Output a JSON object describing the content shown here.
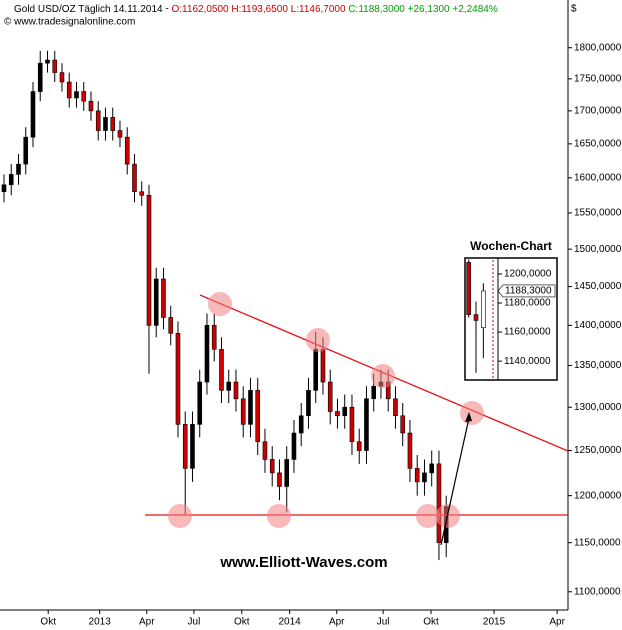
{
  "chart_data": [
    {
      "type": "candlestick",
      "title": "Gold USD/OZ Täglich",
      "date": "14.11.2014",
      "quote_ohl": "O:1162,0500 H:1193,6500 L:1146,7000",
      "quote_change": "C:1188,3000 +26,1300 +2,2484%",
      "source": "© www.tradesignalonline.com",
      "currency": "$",
      "annotation": "www.Elliott-Waves.com",
      "up_color": "#000000",
      "down_color": "#cc0000",
      "log_scale": true,
      "grid": false,
      "open": [
        1580,
        1590,
        1605,
        1620,
        1660,
        1730,
        1775,
        1780,
        1760,
        1745,
        1720,
        1730,
        1715,
        1700,
        1670,
        1690,
        1670,
        1660,
        1620,
        1580,
        1575,
        1400,
        1460,
        1410,
        1390,
        1280,
        1230,
        1280,
        1330,
        1400,
        1370,
        1320,
        1330,
        1310,
        1280,
        1320,
        1260,
        1240,
        1225,
        1210,
        1240,
        1270,
        1290,
        1320,
        1370,
        1330,
        1295,
        1290,
        1300,
        1260,
        1250,
        1310,
        1325,
        1330,
        1310,
        1290,
        1270,
        1230,
        1215,
        1225,
        1235,
        1150
      ],
      "high": [
        1605,
        1620,
        1635,
        1675,
        1745,
        1795,
        1795,
        1795,
        1775,
        1760,
        1745,
        1745,
        1730,
        1715,
        1705,
        1705,
        1685,
        1675,
        1635,
        1595,
        1590,
        1475,
        1475,
        1425,
        1405,
        1295,
        1295,
        1345,
        1415,
        1415,
        1385,
        1345,
        1345,
        1325,
        1335,
        1335,
        1275,
        1255,
        1240,
        1255,
        1285,
        1305,
        1335,
        1392,
        1385,
        1345,
        1310,
        1315,
        1315,
        1275,
        1325,
        1340,
        1345,
        1345,
        1325,
        1305,
        1285,
        1245,
        1240,
        1250,
        1250,
        1200
      ],
      "low": [
        1565,
        1575,
        1590,
        1605,
        1645,
        1715,
        1760,
        1745,
        1730,
        1705,
        1705,
        1700,
        1685,
        1655,
        1655,
        1655,
        1645,
        1605,
        1565,
        1560,
        1340,
        1385,
        1395,
        1375,
        1265,
        1180,
        1215,
        1265,
        1315,
        1355,
        1305,
        1305,
        1295,
        1265,
        1265,
        1245,
        1225,
        1210,
        1195,
        1182,
        1225,
        1255,
        1275,
        1305,
        1315,
        1280,
        1275,
        1275,
        1245,
        1235,
        1235,
        1295,
        1310,
        1295,
        1275,
        1255,
        1215,
        1200,
        1200,
        1210,
        1132,
        1135
      ],
      "close": [
        1590,
        1605,
        1620,
        1660,
        1730,
        1775,
        1780,
        1760,
        1745,
        1720,
        1730,
        1715,
        1700,
        1670,
        1690,
        1670,
        1660,
        1620,
        1580,
        1575,
        1400,
        1460,
        1410,
        1390,
        1280,
        1230,
        1280,
        1330,
        1400,
        1370,
        1320,
        1330,
        1310,
        1280,
        1320,
        1260,
        1240,
        1225,
        1210,
        1240,
        1270,
        1290,
        1320,
        1370,
        1330,
        1295,
        1290,
        1300,
        1260,
        1250,
        1310,
        1325,
        1330,
        1310,
        1290,
        1270,
        1230,
        1215,
        1225,
        1235,
        1150,
        1188.3
      ],
      "xlim": [
        -0.55,
        77.8
      ],
      "xticks": [
        {
          "value": 6.1,
          "label": "Okt"
        },
        {
          "value": 13.2,
          "label": "2013"
        },
        {
          "value": 19.7,
          "label": "Apr"
        },
        {
          "value": 26.2,
          "label": "Jul"
        },
        {
          "value": 32.8,
          "label": "Okt"
        },
        {
          "value": 39.4,
          "label": "2014"
        },
        {
          "value": 45.9,
          "label": "Apr"
        },
        {
          "value": 52.3,
          "label": "Jul"
        },
        {
          "value": 58.9,
          "label": "Okt"
        },
        {
          "value": 67.6,
          "label": "2015"
        },
        {
          "value": 76.3,
          "label": "Apr"
        }
      ],
      "ylim": [
        1082,
        1871
      ],
      "yticks": [
        {
          "value": 1100,
          "label": "1100,0000"
        },
        {
          "value": 1150,
          "label": "1150,0000"
        },
        {
          "value": 1200,
          "label": "1200,0000"
        },
        {
          "value": 1250,
          "label": "1250,0000"
        },
        {
          "value": 1300,
          "label": "1300,0000"
        },
        {
          "value": 1350,
          "label": "1350,0000"
        },
        {
          "value": 1400,
          "label": "1400,0000"
        },
        {
          "value": 1450,
          "label": "1450,0000"
        },
        {
          "value": 1500,
          "label": "1500,0000"
        },
        {
          "value": 1550,
          "label": "1550,0000"
        },
        {
          "value": 1600,
          "label": "1600,0000"
        },
        {
          "value": 1650,
          "label": "1650,0000"
        },
        {
          "value": 1700,
          "label": "1700,0000"
        },
        {
          "value": 1750,
          "label": "1750,0000"
        },
        {
          "value": 1800,
          "label": "1800,0000"
        }
      ]
    },
    {
      "type": "candlestick",
      "title": "Wochen-Chart",
      "up_color": "#ffffff",
      "down_color": "#cc0000",
      "log_scale": false,
      "open": [
        1208,
        1172,
        1163
      ],
      "high": [
        1210,
        1181,
        1193.65
      ],
      "low": [
        1170,
        1132,
        1142
      ],
      "close": [
        1172,
        1168,
        1188.3
      ],
      "last_close_label": "1188,3000",
      "xlim": [
        -0.5,
        4
      ],
      "ylim": [
        1127,
        1211
      ],
      "yticks": [
        {
          "value": 1140,
          "label": "1140,0000"
        },
        {
          "value": 1160,
          "label": "1160,0000"
        },
        {
          "value": 1180,
          "label": "1180,0000"
        },
        {
          "value": 1200,
          "label": "1200,0000"
        }
      ]
    }
  ]
}
